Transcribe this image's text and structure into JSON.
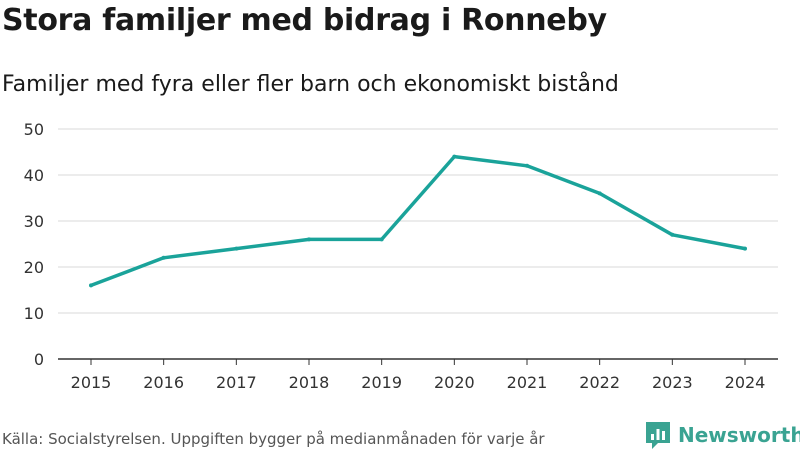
{
  "header": {
    "title": "Stora familjer med bidrag i Ronneby",
    "subtitle": "Familjer med fyra eller fler barn och ekonomiskt bistånd"
  },
  "chart_data": {
    "type": "line",
    "title": "Stora familjer med bidrag i Ronneby",
    "subtitle": "Familjer med fyra eller fler barn och ekonomiskt bistånd",
    "xlabel": "",
    "ylabel": "",
    "x": [
      "2015",
      "2016",
      "2017",
      "2018",
      "2019",
      "2020",
      "2021",
      "2022",
      "2023",
      "2024"
    ],
    "series": [
      {
        "name": "Familjer",
        "values": [
          16,
          22,
          24,
          26,
          26,
          44,
          42,
          36,
          27,
          24
        ],
        "color": "#1aa39a"
      }
    ],
    "yticks": [
      0,
      10,
      20,
      30,
      40,
      50
    ],
    "ylim": [
      0,
      50
    ],
    "grid": true
  },
  "footer": {
    "source": "Källa: Socialstyrelsen. Uppgiften bygger på medianmånaden för varje år",
    "brand": "Newsworthy",
    "brand_color": "#3aa392",
    "brand_icon": "bar-chart-speech-icon"
  }
}
